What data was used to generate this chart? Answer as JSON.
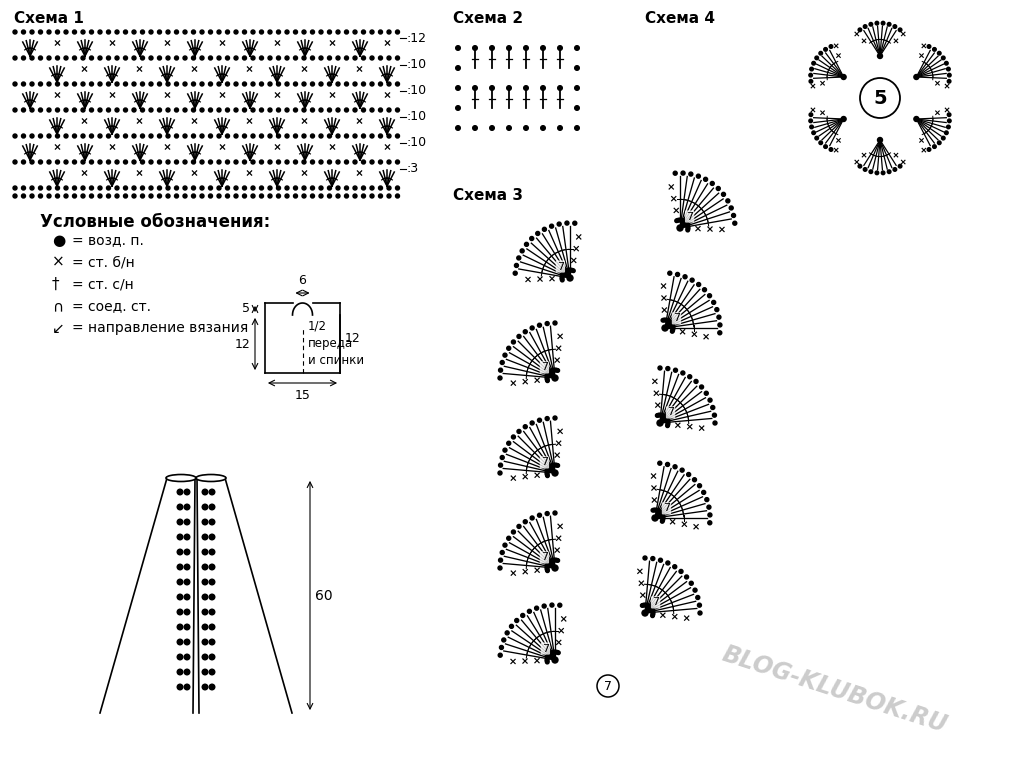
{
  "bg_color": "#ffffff",
  "schema1_label": "Схема 1",
  "schema2_label": "Схема 2",
  "schema3_label": "Схема 3",
  "schema4_label": "Схема 4",
  "legend_title": "Условные обозначения:",
  "row_numbers_schema1": [
    12,
    10,
    10,
    10,
    10,
    3
  ],
  "skirt_dim_60": "60",
  "bodice_dim_6": "6",
  "bodice_dim_5": "5",
  "bodice_dim_12a": "12",
  "bodice_dim_12b": "12",
  "bodice_dim_15": "15",
  "bodice_label": "1/2\nпереда\nи спинки",
  "watermark": "BLOG-KLUBOK.RU",
  "schema4_center": "5",
  "schema3_num": "7",
  "schema3_num_bottom": "7"
}
